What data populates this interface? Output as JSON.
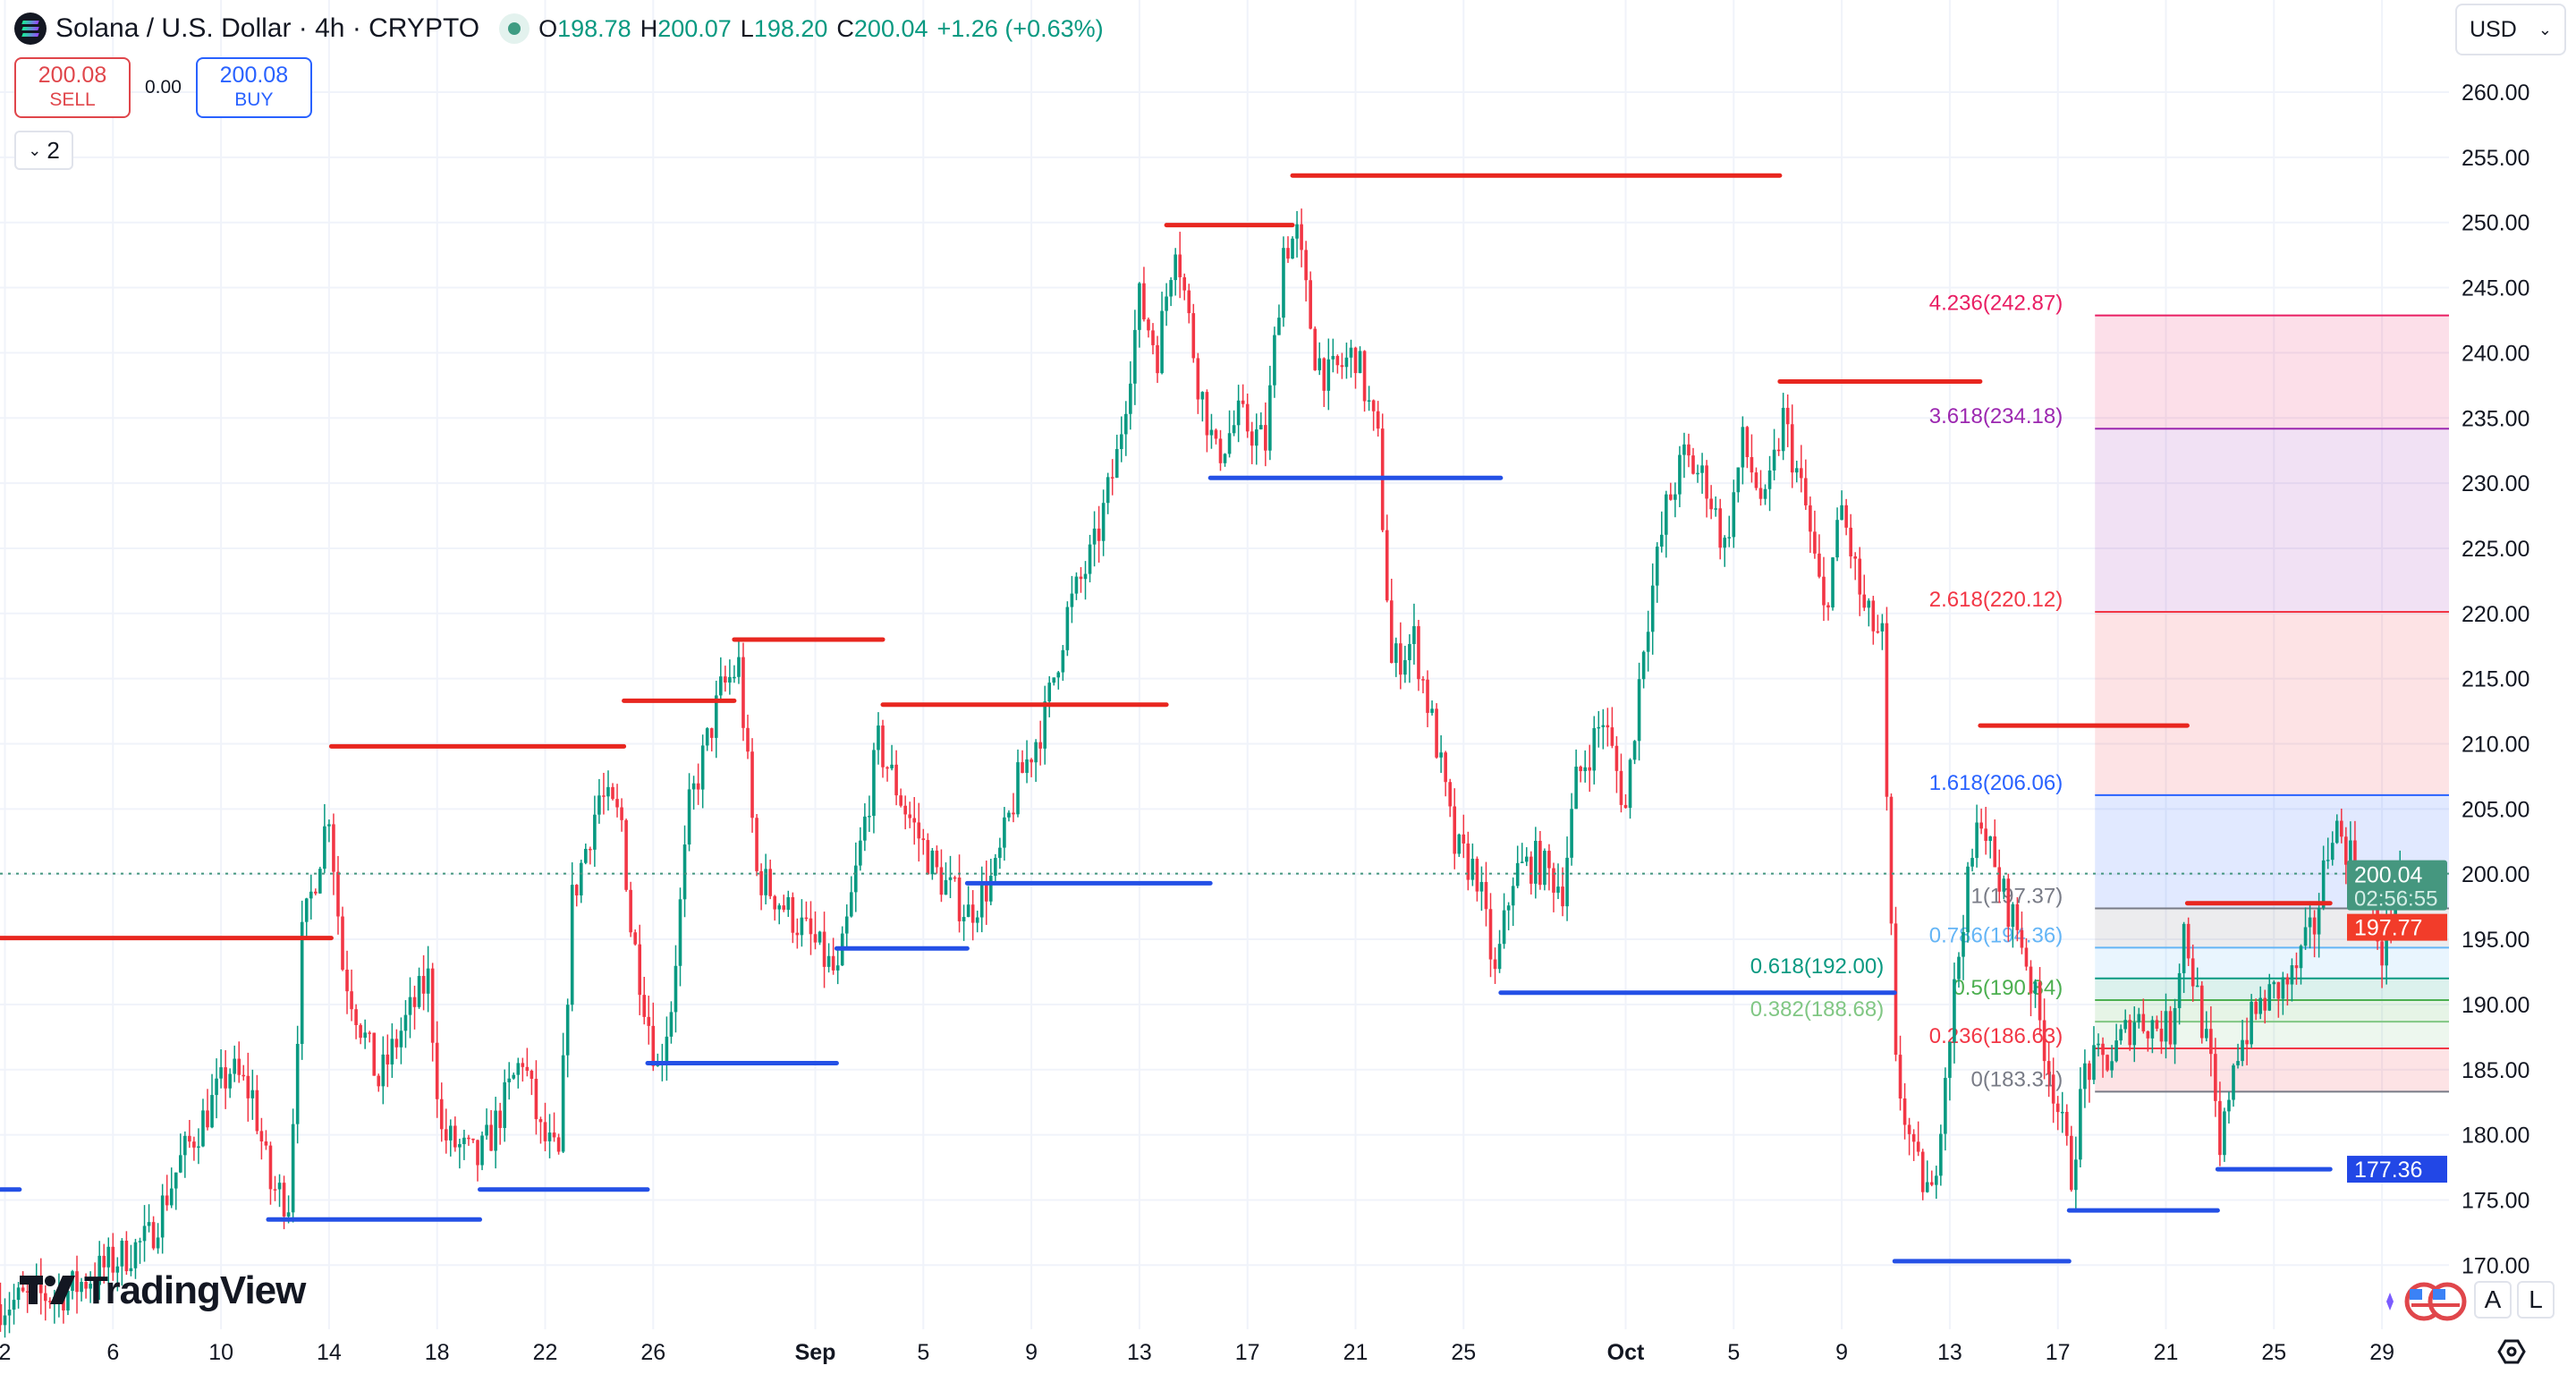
{
  "header": {
    "symbol_title": "Solana / U.S. Dollar · 4h · CRYPTO",
    "ohlc": {
      "o_label": "O",
      "o": "198.78",
      "h_label": "H",
      "h": "200.07",
      "l_label": "L",
      "l": "198.20",
      "c_label": "C",
      "c": "200.04",
      "change": "+1.26 (+0.63%)"
    }
  },
  "trade": {
    "sell_price": "200.08",
    "sell_label": "SELL",
    "spread": "0.00",
    "buy_price": "200.08",
    "buy_label": "BUY"
  },
  "indicators_toggle": {
    "count": "2",
    "icon": "chevron-down-icon"
  },
  "currency_select": "USD",
  "axis_buttons": {
    "auto": "A",
    "log": "L"
  },
  "logo_text": "TradingView",
  "colors": {
    "up": "#089981",
    "down": "#f23645",
    "resistance": "#e8261f",
    "support": "#2450e6",
    "current": "#45977f",
    "grid": "#f0f3fa"
  },
  "chart_data": {
    "type": "candlestick",
    "interval": "4h",
    "ylim": [
      167,
      262
    ],
    "y_ticks": [
      "260.00",
      "255.00",
      "250.00",
      "245.00",
      "240.00",
      "235.00",
      "230.00",
      "225.00",
      "220.00",
      "215.00",
      "210.00",
      "205.00",
      "200.00",
      "195.00",
      "190.00",
      "185.00",
      "180.00",
      "175.00",
      "170.00"
    ],
    "x_ticks": [
      {
        "date": "2025-08-02",
        "label": "2"
      },
      {
        "date": "2025-08-06",
        "label": "6"
      },
      {
        "date": "2025-08-10",
        "label": "10"
      },
      {
        "date": "2025-08-14",
        "label": "14"
      },
      {
        "date": "2025-08-18",
        "label": "18"
      },
      {
        "date": "2025-08-22",
        "label": "22"
      },
      {
        "date": "2025-08-26",
        "label": "26"
      },
      {
        "date": "2025-09-01",
        "label": "Sep",
        "bold": true
      },
      {
        "date": "2025-09-05",
        "label": "5"
      },
      {
        "date": "2025-09-09",
        "label": "9"
      },
      {
        "date": "2025-09-13",
        "label": "13"
      },
      {
        "date": "2025-09-17",
        "label": "17"
      },
      {
        "date": "2025-09-21",
        "label": "21"
      },
      {
        "date": "2025-09-25",
        "label": "25"
      },
      {
        "date": "2025-10-01",
        "label": "Oct",
        "bold": true
      },
      {
        "date": "2025-10-05",
        "label": "5"
      },
      {
        "date": "2025-10-09",
        "label": "9"
      },
      {
        "date": "2025-10-13",
        "label": "13"
      },
      {
        "date": "2025-10-17",
        "label": "17"
      },
      {
        "date": "2025-10-21",
        "label": "21"
      },
      {
        "date": "2025-10-25",
        "label": "25"
      },
      {
        "date": "2025-10-29",
        "label": "29"
      }
    ],
    "price_path": [
      [
        "2025-08-01T20",
        167
      ],
      [
        "2025-08-04T08",
        168
      ],
      [
        "2025-08-07T08",
        172
      ],
      [
        "2025-08-08T12",
        178
      ],
      [
        "2025-08-10T08",
        185
      ],
      [
        "2025-08-11T04",
        183
      ],
      [
        "2025-08-11T20",
        176
      ],
      [
        "2025-08-12T12",
        175
      ],
      [
        "2025-08-13T00",
        195
      ],
      [
        "2025-08-14T00",
        205
      ],
      [
        "2025-08-14T12",
        193
      ],
      [
        "2025-08-15T20",
        184
      ],
      [
        "2025-08-16T16",
        188
      ],
      [
        "2025-08-17T16",
        192
      ],
      [
        "2025-08-18T04",
        180
      ],
      [
        "2025-08-19T12",
        178
      ],
      [
        "2025-08-20T00",
        180
      ],
      [
        "2025-08-21T04",
        186
      ],
      [
        "2025-08-21T20",
        180
      ],
      [
        "2025-08-22T12",
        178
      ],
      [
        "2025-08-23T00",
        198
      ],
      [
        "2025-08-24T00",
        206
      ],
      [
        "2025-08-24T20",
        204
      ],
      [
        "2025-08-25T04",
        196
      ],
      [
        "2025-08-26T04",
        185
      ],
      [
        "2025-08-26T16",
        190
      ],
      [
        "2025-08-27T08",
        205
      ],
      [
        "2025-08-28T12",
        214
      ],
      [
        "2025-08-29T04",
        216
      ],
      [
        "2025-08-29T20",
        200
      ],
      [
        "2025-08-30T16",
        198
      ],
      [
        "2025-08-31T20",
        195
      ],
      [
        "2025-09-01T20",
        192
      ],
      [
        "2025-09-02T12",
        200
      ],
      [
        "2025-09-03T08",
        210
      ],
      [
        "2025-09-04T08",
        205
      ],
      [
        "2025-09-05T12",
        200
      ],
      [
        "2025-09-06T16",
        197
      ],
      [
        "2025-09-07T16",
        200
      ],
      [
        "2025-09-08T12",
        207
      ],
      [
        "2025-09-09T12",
        212
      ],
      [
        "2025-09-10T08",
        220
      ],
      [
        "2025-09-11T08",
        225
      ],
      [
        "2025-09-12T04",
        232
      ],
      [
        "2025-09-13T00",
        244
      ],
      [
        "2025-09-13T16",
        240
      ],
      [
        "2025-09-14T08",
        249
      ],
      [
        "2025-09-15T04",
        238
      ],
      [
        "2025-09-15T20",
        232
      ],
      [
        "2025-09-16T16",
        235
      ],
      [
        "2025-09-17T16",
        233
      ],
      [
        "2025-09-18T08",
        248
      ],
      [
        "2025-09-18T20",
        249
      ],
      [
        "2025-09-19T12",
        240
      ],
      [
        "2025-09-20T00",
        238
      ],
      [
        "2025-09-21T00",
        240
      ],
      [
        "2025-09-21T20",
        233
      ],
      [
        "2025-09-22T08",
        216
      ],
      [
        "2025-09-23T04",
        218
      ],
      [
        "2025-09-24T00",
        210
      ],
      [
        "2025-09-24T16",
        202
      ],
      [
        "2025-09-25T12",
        200
      ],
      [
        "2025-09-26T04",
        192
      ],
      [
        "2025-09-26T20",
        200
      ],
      [
        "2025-09-27T16",
        201
      ],
      [
        "2025-09-28T16",
        199
      ],
      [
        "2025-09-29T04",
        207
      ],
      [
        "2025-09-30T04",
        212
      ],
      [
        "2025-10-01T00",
        205
      ],
      [
        "2025-10-01T16",
        218
      ],
      [
        "2025-10-02T12",
        228
      ],
      [
        "2025-10-03T04",
        232
      ],
      [
        "2025-10-04T00",
        230
      ],
      [
        "2025-10-04T16",
        225
      ],
      [
        "2025-10-05T08",
        233
      ],
      [
        "2025-10-06T04",
        228
      ],
      [
        "2025-10-06T20",
        235
      ],
      [
        "2025-10-07T16",
        228
      ],
      [
        "2025-10-08T08",
        220
      ],
      [
        "2025-10-09T00",
        228
      ],
      [
        "2025-10-09T20",
        220
      ],
      [
        "2025-10-10T12",
        218
      ],
      [
        "2025-10-10T16",
        205
      ],
      [
        "2025-10-11T00",
        185
      ],
      [
        "2025-10-11T16",
        178
      ],
      [
        "2025-10-12T08",
        175
      ],
      [
        "2025-10-12T20",
        185
      ],
      [
        "2025-10-13T12",
        197
      ],
      [
        "2025-10-14T04",
        205
      ],
      [
        "2025-10-14T16",
        200
      ],
      [
        "2025-10-15T16",
        195
      ],
      [
        "2025-10-16T12",
        187
      ],
      [
        "2025-10-17T12",
        177
      ],
      [
        "2025-10-18T00",
        185
      ],
      [
        "2025-10-19T00",
        186
      ],
      [
        "2025-10-19T20",
        189
      ],
      [
        "2025-10-21T04",
        188
      ],
      [
        "2025-10-21T16",
        196
      ],
      [
        "2025-10-22T16",
        185
      ],
      [
        "2025-10-23T00",
        178
      ],
      [
        "2025-10-23T12",
        186
      ],
      [
        "2025-10-24T12",
        190
      ],
      [
        "2025-10-25T16",
        192
      ],
      [
        "2025-10-26T12",
        196
      ],
      [
        "2025-10-27T04",
        204
      ],
      [
        "2025-10-28T00",
        201
      ],
      [
        "2025-10-29T00",
        194
      ],
      [
        "2025-10-29T16",
        200.04
      ]
    ],
    "resistance_lines": [
      {
        "from": "2025-08-01T20",
        "to": "2025-08-14T02",
        "price": 195.1
      },
      {
        "from": "2025-08-14T02",
        "to": "2025-08-24T22",
        "price": 209.8
      },
      {
        "from": "2025-08-24T22",
        "to": "2025-08-29T00",
        "price": 213.3
      },
      {
        "from": "2025-08-29T00",
        "to": "2025-09-03T12",
        "price": 218.0
      },
      {
        "from": "2025-09-03T12",
        "to": "2025-09-14T00",
        "price": 213.0
      },
      {
        "from": "2025-09-14T00",
        "to": "2025-09-18T16",
        "price": 249.8
      },
      {
        "from": "2025-09-18T16",
        "to": "2025-10-06T17",
        "price": 253.6
      },
      {
        "from": "2025-10-06T17",
        "to": "2025-10-14T03",
        "price": 237.8
      },
      {
        "from": "2025-10-14T03",
        "to": "2025-10-21T19",
        "price": 211.4
      },
      {
        "from": "2025-10-21T19",
        "to": "2025-10-27T02",
        "price": 197.77
      }
    ],
    "support_lines": [
      {
        "from": "2025-08-01T20",
        "to": "2025-08-02T13",
        "price": 175.8
      },
      {
        "from": "2025-08-11T18",
        "to": "2025-08-19T14",
        "price": 173.5
      },
      {
        "from": "2025-08-19T14",
        "to": "2025-08-25T19",
        "price": 175.8
      },
      {
        "from": "2025-08-25T19",
        "to": "2025-09-01T19",
        "price": 185.5
      },
      {
        "from": "2025-09-01T19",
        "to": "2025-09-06T15",
        "price": 194.3
      },
      {
        "from": "2025-09-06T15",
        "to": "2025-09-15T15",
        "price": 199.3
      },
      {
        "from": "2025-09-15T15",
        "to": "2025-09-26T09",
        "price": 230.4
      },
      {
        "from": "2025-09-26T09",
        "to": "2025-10-10T23",
        "price": 190.9
      },
      {
        "from": "2025-10-10T23",
        "to": "2025-10-17T10",
        "price": 170.3
      },
      {
        "from": "2025-10-17T10",
        "to": "2025-10-22T22",
        "price": 174.2
      },
      {
        "from": "2025-10-22T22",
        "to": "2025-10-27T02",
        "price": 177.36
      }
    ],
    "fibonacci": {
      "from": "2025-10-18T09",
      "levels": [
        {
          "ratio": "0",
          "price": 183.31,
          "label": "0(183.31)",
          "color": "#787b86"
        },
        {
          "ratio": "0.236",
          "price": 186.63,
          "label": "0.236(186.63)",
          "color": "#f23645"
        },
        {
          "ratio": "0.382",
          "price": 188.68,
          "label": "0.382(188.68)",
          "color": "#81c784"
        },
        {
          "ratio": "0.5",
          "price": 190.34,
          "label": "0.5(190.34)",
          "color": "#4caf50"
        },
        {
          "ratio": "0.618",
          "price": 192.0,
          "label": "0.618(192.00)",
          "color": "#089981"
        },
        {
          "ratio": "0.786",
          "price": 194.36,
          "label": "0.786(194.36)",
          "color": "#64b5f6"
        },
        {
          "ratio": "1",
          "price": 197.37,
          "label": "1(197.37)",
          "color": "#787b86"
        },
        {
          "ratio": "1.618",
          "price": 206.06,
          "label": "1.618(206.06)",
          "color": "#2962ff"
        },
        {
          "ratio": "2.618",
          "price": 220.12,
          "label": "2.618(220.12)",
          "color": "#f23645"
        },
        {
          "ratio": "3.618",
          "price": 234.18,
          "label": "3.618(234.18)",
          "color": "#9c27b0"
        },
        {
          "ratio": "4.236",
          "price": 242.87,
          "label": "4.236(242.87)",
          "color": "#e91e63"
        }
      ]
    },
    "price_labels": {
      "current": {
        "price": 200.04,
        "text": "200.04",
        "countdown": "02:56:55"
      },
      "resistance": {
        "price": 197.77,
        "text": "197.77"
      },
      "support": {
        "price": 177.36,
        "text": "177.36"
      }
    }
  }
}
